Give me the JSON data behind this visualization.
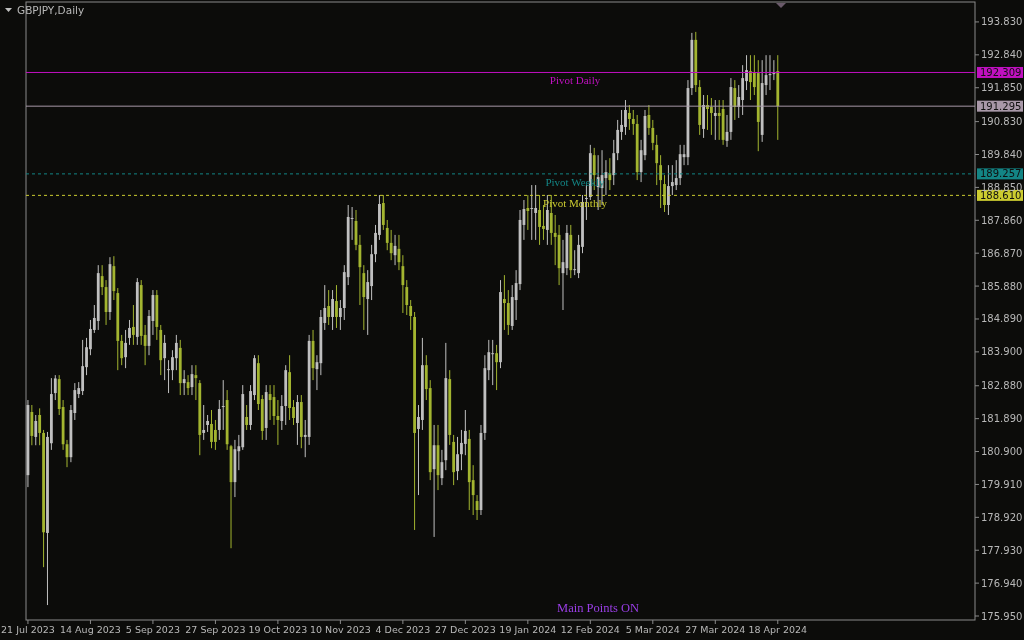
{
  "chart_data": {
    "type": "candlestick",
    "title": "GBPJPY,Daily",
    "categories": [
      "21 Jul 2023",
      null,
      null,
      null,
      null,
      null,
      null,
      null,
      null,
      null,
      null,
      null,
      null,
      null,
      null,
      null,
      "14 Aug 2023",
      null,
      null,
      null,
      null,
      null,
      null,
      null,
      null,
      null,
      null,
      null,
      null,
      null,
      null,
      null,
      "5 Sep 2023",
      null,
      null,
      null,
      null,
      null,
      null,
      null,
      null,
      null,
      null,
      null,
      null,
      null,
      null,
      null,
      "27 Sep 2023",
      null,
      null,
      null,
      null,
      null,
      null,
      null,
      null,
      null,
      null,
      null,
      null,
      null,
      null,
      null,
      "19 Oct 2023",
      null,
      null,
      null,
      null,
      null,
      null,
      null,
      null,
      null,
      null,
      null,
      null,
      null,
      null,
      null,
      "10 Nov 2023",
      null,
      null,
      null,
      null,
      null,
      null,
      null,
      null,
      null,
      null,
      null,
      null,
      null,
      null,
      null,
      "4 Dec 2023",
      null,
      null,
      null,
      null,
      null,
      null,
      null,
      null,
      null,
      null,
      null,
      null,
      null,
      null,
      null,
      "27 Dec 2023",
      null,
      null,
      null,
      null,
      null,
      null,
      null,
      null,
      null,
      null,
      null,
      null,
      null,
      null,
      null,
      "19 Jan 2024",
      null,
      null,
      null,
      null,
      null,
      null,
      null,
      null,
      null,
      null,
      null,
      null,
      null,
      null,
      null,
      "12 Feb 2024",
      null,
      null,
      null,
      null,
      null,
      null,
      null,
      null,
      null,
      null,
      null,
      null,
      null,
      null,
      null,
      "5 Mar 2024",
      null,
      null,
      null,
      null,
      null,
      null,
      null,
      null,
      null,
      null,
      null,
      null,
      null,
      null,
      null,
      "27 Mar 2024",
      null,
      null,
      null,
      null,
      null,
      null,
      null,
      null,
      null,
      null,
      null,
      null,
      null,
      null,
      null,
      "18 Apr 2024",
      null,
      null,
      null,
      null,
      null,
      null,
      null,
      null,
      null,
      null,
      null,
      null,
      null,
      null,
      null,
      null,
      null,
      null,
      null,
      null,
      null,
      null,
      null,
      null,
      null,
      null,
      null,
      null,
      null,
      null,
      null,
      null,
      null,
      null,
      null,
      null,
      null,
      null,
      null,
      null,
      null,
      null,
      null,
      null,
      null,
      null,
      null,
      null,
      null,
      null
    ],
    "ohlc": [
      [
        180.19,
        182.45,
        179.83,
        182.3
      ],
      [
        182.09,
        182.3,
        181.09,
        181.37
      ],
      [
        181.34,
        182.0,
        181.09,
        181.82
      ],
      [
        182.0,
        182.2,
        181.09,
        181.46
      ],
      [
        181.46,
        181.55,
        177.42,
        178.47
      ],
      [
        178.45,
        181.49,
        176.28,
        181.34
      ],
      [
        181.15,
        183.11,
        180.95,
        182.63
      ],
      [
        182.66,
        183.2,
        182.45,
        183.1
      ],
      [
        183.08,
        183.2,
        182.0,
        182.18
      ],
      [
        182.24,
        182.45,
        180.95,
        181.12
      ],
      [
        181.12,
        181.25,
        180.43,
        180.73
      ],
      [
        180.73,
        182.3,
        180.58,
        182.15
      ],
      [
        182.06,
        182.96,
        181.85,
        182.75
      ],
      [
        182.63,
        182.99,
        182.51,
        182.81
      ],
      [
        182.72,
        184.26,
        182.6,
        183.47
      ],
      [
        183.44,
        184.32,
        183.2,
        184.04
      ],
      [
        183.98,
        184.86,
        183.8,
        184.59
      ],
      [
        184.56,
        185.31,
        184.47,
        184.92
      ],
      [
        184.83,
        186.51,
        184.56,
        186.27
      ],
      [
        186.18,
        186.51,
        185.61,
        185.85
      ],
      [
        185.85,
        186.06,
        184.71,
        185.1
      ],
      [
        185.1,
        186.75,
        184.86,
        186.54
      ],
      [
        186.48,
        186.78,
        185.46,
        185.73
      ],
      [
        185.67,
        185.82,
        183.35,
        184.23
      ],
      [
        184.23,
        184.41,
        183.5,
        183.71
      ],
      [
        183.74,
        184.56,
        183.41,
        184.17
      ],
      [
        184.32,
        184.86,
        184.11,
        184.62
      ],
      [
        184.65,
        185.31,
        184.11,
        184.41
      ],
      [
        184.35,
        186.12,
        184.11,
        186.0
      ],
      [
        185.91,
        186.06,
        184.11,
        184.38
      ],
      [
        184.41,
        184.71,
        183.5,
        184.08
      ],
      [
        184.08,
        185.16,
        183.8,
        184.98
      ],
      [
        184.83,
        185.76,
        184.41,
        185.61
      ],
      [
        185.61,
        185.76,
        184.26,
        184.65
      ],
      [
        184.56,
        184.71,
        183.2,
        183.65
      ],
      [
        183.71,
        184.41,
        183.05,
        184.17
      ],
      [
        183.38,
        183.65,
        182.66,
        183.38
      ],
      [
        183.35,
        183.95,
        183.05,
        183.74
      ],
      [
        183.71,
        184.41,
        183.35,
        184.17
      ],
      [
        184.02,
        184.26,
        182.6,
        182.96
      ],
      [
        182.96,
        183.35,
        182.6,
        183.08
      ],
      [
        182.99,
        183.2,
        182.6,
        182.81
      ],
      [
        182.84,
        183.5,
        182.6,
        183.23
      ],
      [
        183.2,
        183.5,
        182.45,
        183.11
      ],
      [
        182.96,
        183.05,
        180.79,
        181.4
      ],
      [
        181.46,
        182.3,
        181.25,
        181.55
      ],
      [
        181.7,
        182.0,
        181.49,
        181.82
      ],
      [
        181.73,
        182.15,
        181.0,
        181.19
      ],
      [
        181.55,
        181.85,
        180.95,
        181.19
      ],
      [
        181.55,
        182.45,
        181.25,
        182.18
      ],
      [
        182.24,
        183.05,
        181.55,
        182.27
      ],
      [
        182.45,
        182.75,
        180.95,
        181.12
      ],
      [
        181.06,
        181.1,
        177.99,
        179.98
      ],
      [
        179.98,
        181.25,
        179.53,
        180.97
      ],
      [
        180.91,
        181.4,
        180.34,
        181.06
      ],
      [
        181.03,
        182.9,
        180.95,
        182.63
      ],
      [
        181.94,
        182.3,
        181.55,
        181.7
      ],
      [
        181.7,
        182.9,
        181.55,
        182.72
      ],
      [
        182.6,
        183.8,
        182.45,
        183.71
      ],
      [
        183.56,
        183.8,
        182.15,
        182.33
      ],
      [
        182.48,
        182.6,
        181.25,
        181.52
      ],
      [
        181.61,
        182.9,
        181.25,
        182.69
      ],
      [
        182.63,
        182.9,
        181.85,
        182.45
      ],
      [
        182.54,
        182.9,
        181.7,
        181.97
      ],
      [
        181.97,
        182.45,
        181.1,
        181.85
      ],
      [
        181.82,
        182.6,
        181.55,
        182.27
      ],
      [
        182.27,
        183.5,
        181.7,
        183.35
      ],
      [
        183.29,
        183.8,
        181.85,
        182.21
      ],
      [
        182.24,
        182.45,
        181.7,
        181.91
      ],
      [
        181.76,
        182.6,
        181.1,
        182.39
      ],
      [
        182.39,
        182.6,
        181.0,
        181.34
      ],
      [
        181.34,
        181.85,
        180.73,
        181.4
      ],
      [
        181.34,
        184.41,
        181.1,
        184.23
      ],
      [
        184.23,
        184.56,
        183.05,
        183.41
      ],
      [
        183.38,
        183.8,
        182.75,
        183.59
      ],
      [
        183.56,
        185.16,
        183.2,
        184.95
      ],
      [
        184.77,
        185.91,
        184.56,
        185.22
      ],
      [
        185.28,
        185.76,
        184.71,
        184.95
      ],
      [
        184.95,
        185.76,
        184.56,
        185.49
      ],
      [
        185.43,
        185.91,
        184.62,
        184.95
      ],
      [
        184.95,
        185.46,
        184.56,
        185.22
      ],
      [
        185.22,
        186.51,
        184.86,
        186.3
      ],
      [
        186.15,
        188.32,
        185.91,
        187.96
      ],
      [
        187.93,
        188.26,
        187.27,
        187.93
      ],
      [
        187.84,
        188.17,
        186.96,
        187.12
      ],
      [
        187.12,
        187.42,
        185.31,
        186.45
      ],
      [
        186.27,
        186.51,
        184.56,
        185.55
      ],
      [
        185.49,
        186.36,
        184.41,
        186.0
      ],
      [
        185.88,
        187.12,
        185.46,
        186.84
      ],
      [
        186.84,
        187.72,
        186.6,
        187.48
      ],
      [
        187.42,
        188.62,
        187.27,
        188.35
      ],
      [
        188.38,
        188.62,
        187.57,
        187.72
      ],
      [
        187.63,
        187.87,
        186.96,
        187.18
      ],
      [
        187.18,
        187.57,
        186.66,
        186.87
      ],
      [
        186.81,
        187.42,
        186.51,
        187.09
      ],
      [
        187.0,
        187.42,
        186.36,
        186.6
      ],
      [
        186.48,
        186.81,
        185.07,
        185.91
      ],
      [
        185.85,
        186.06,
        185.01,
        185.31
      ],
      [
        185.28,
        185.46,
        184.56,
        184.98
      ],
      [
        184.95,
        185.1,
        178.54,
        181.46
      ],
      [
        181.58,
        182.3,
        179.59,
        181.94
      ],
      [
        181.85,
        184.32,
        181.55,
        183.5
      ],
      [
        183.5,
        183.8,
        182.45,
        182.78
      ],
      [
        182.81,
        183.05,
        180.04,
        180.28
      ],
      [
        180.37,
        181.7,
        178.33,
        181.09
      ],
      [
        181.09,
        181.7,
        179.74,
        180.19
      ],
      [
        180.1,
        180.95,
        179.89,
        180.58
      ],
      [
        180.64,
        184.17,
        180.34,
        183.11
      ],
      [
        183.08,
        183.35,
        181.1,
        181.4
      ],
      [
        181.19,
        181.4,
        179.89,
        180.28
      ],
      [
        180.31,
        181.34,
        180.04,
        180.82
      ],
      [
        180.82,
        181.55,
        180.34,
        181.16
      ],
      [
        181.13,
        182.15,
        180.79,
        181.52
      ],
      [
        181.28,
        181.55,
        179.14,
        179.98
      ],
      [
        180.04,
        180.49,
        178.99,
        179.59
      ],
      [
        179.41,
        179.59,
        178.84,
        179.14
      ],
      [
        179.14,
        181.7,
        178.99,
        181.46
      ],
      [
        181.46,
        183.8,
        181.25,
        183.41
      ],
      [
        183.35,
        184.26,
        183.05,
        183.89
      ],
      [
        183.86,
        184.26,
        182.9,
        183.86
      ],
      [
        183.86,
        184.11,
        182.75,
        183.59
      ],
      [
        183.59,
        186.06,
        183.41,
        185.7
      ],
      [
        185.49,
        186.21,
        184.56,
        185.37
      ],
      [
        185.37,
        185.76,
        184.41,
        184.71
      ],
      [
        184.68,
        185.91,
        184.56,
        185.55
      ],
      [
        185.46,
        186.36,
        184.86,
        185.97
      ],
      [
        185.94,
        188.17,
        185.76,
        187.87
      ],
      [
        187.72,
        188.47,
        187.27,
        188.2
      ],
      [
        188.23,
        188.62,
        187.57,
        188.14
      ],
      [
        188.23,
        188.92,
        187.27,
        188.23
      ],
      [
        188.08,
        188.92,
        187.27,
        188.23
      ],
      [
        188.17,
        188.62,
        187.12,
        187.66
      ],
      [
        187.69,
        188.32,
        187.27,
        187.6
      ],
      [
        187.57,
        188.62,
        187.12,
        188.17
      ],
      [
        188.08,
        188.62,
        187.12,
        187.48
      ],
      [
        187.48,
        188.02,
        186.51,
        187.36
      ],
      [
        187.42,
        187.72,
        185.91,
        186.42
      ],
      [
        186.27,
        187.27,
        185.16,
        186.6
      ],
      [
        186.42,
        187.72,
        186.21,
        187.48
      ],
      [
        187.42,
        187.72,
        186.12,
        186.36
      ],
      [
        186.39,
        186.96,
        186.21,
        186.39
      ],
      [
        186.27,
        187.42,
        186.12,
        187.12
      ],
      [
        187.06,
        188.62,
        186.87,
        188.41
      ],
      [
        188.53,
        188.92,
        187.87,
        188.53
      ],
      [
        188.56,
        190.13,
        188.47,
        189.88
      ],
      [
        189.82,
        190.04,
        188.77,
        189.22
      ],
      [
        188.86,
        189.82,
        188.17,
        189.16
      ],
      [
        188.83,
        189.97,
        188.32,
        189.22
      ],
      [
        189.13,
        189.67,
        188.62,
        189.31
      ],
      [
        189.28,
        189.73,
        188.77,
        189.07
      ],
      [
        189.22,
        190.28,
        188.92,
        189.88
      ],
      [
        189.88,
        190.88,
        189.67,
        190.58
      ],
      [
        190.52,
        191.18,
        190.28,
        190.73
      ],
      [
        190.67,
        191.48,
        190.43,
        191.18
      ],
      [
        191.09,
        191.33,
        190.58,
        190.91
      ],
      [
        190.91,
        191.18,
        190.43,
        190.76
      ],
      [
        190.76,
        191.03,
        189.07,
        189.31
      ],
      [
        189.31,
        190.28,
        189.01,
        189.97
      ],
      [
        189.82,
        191.18,
        189.67,
        191.0
      ],
      [
        191.03,
        191.33,
        190.43,
        190.64
      ],
      [
        190.64,
        190.88,
        189.97,
        190.19
      ],
      [
        190.13,
        190.43,
        188.92,
        189.58
      ],
      [
        189.52,
        189.82,
        188.23,
        189.07
      ],
      [
        188.95,
        189.22,
        188.11,
        188.32
      ],
      [
        188.32,
        189.52,
        188.02,
        188.89
      ],
      [
        188.89,
        189.52,
        188.62,
        189.01
      ],
      [
        188.92,
        189.67,
        188.77,
        189.13
      ],
      [
        189.13,
        190.13,
        188.92,
        189.85
      ],
      [
        189.76,
        190.13,
        189.52,
        189.85
      ],
      [
        189.76,
        192.08,
        189.52,
        191.84
      ],
      [
        191.84,
        193.5,
        191.63,
        193.29
      ],
      [
        193.29,
        193.53,
        191.72,
        191.93
      ],
      [
        191.87,
        192.08,
        190.43,
        190.73
      ],
      [
        190.61,
        191.63,
        190.34,
        191.33
      ],
      [
        191.33,
        191.63,
        190.58,
        191.21
      ],
      [
        191.27,
        191.54,
        190.43,
        191.09
      ],
      [
        191.0,
        191.48,
        190.28,
        191.09
      ],
      [
        191.09,
        191.48,
        190.28,
        191.0
      ],
      [
        191.21,
        191.48,
        190.13,
        190.28
      ],
      [
        190.25,
        191.03,
        190.07,
        190.52
      ],
      [
        190.52,
        192.14,
        190.28,
        191.87
      ],
      [
        191.84,
        192.08,
        190.88,
        191.27
      ],
      [
        191.27,
        191.93,
        190.94,
        191.57
      ],
      [
        191.48,
        192.53,
        191.03,
        192.14
      ],
      [
        192.05,
        192.83,
        191.78,
        192.38
      ],
      [
        192.35,
        192.83,
        191.48,
        192.02
      ],
      [
        192.32,
        192.83,
        191.63,
        191.87
      ],
      [
        192.29,
        192.68,
        189.94,
        190.82
      ],
      [
        190.43,
        192.68,
        190.22,
        191.99
      ],
      [
        191.93,
        192.83,
        191.63,
        192.23
      ],
      [
        192.26,
        192.83,
        191.78,
        192.26
      ],
      [
        192.29,
        192.68,
        192.08,
        192.29
      ],
      [
        192.35,
        192.83,
        190.28,
        191.3
      ],
      null,
      null,
      null,
      null,
      null,
      null,
      null,
      null,
      null,
      null,
      null,
      null,
      null,
      null,
      null,
      null,
      null,
      null,
      null,
      null,
      null,
      null,
      null,
      null,
      null,
      null,
      null,
      null,
      null,
      null,
      null,
      null,
      null,
      null,
      null,
      null,
      null,
      null,
      null,
      null,
      null,
      null,
      null,
      null,
      null,
      null,
      null,
      null,
      null,
      null
    ],
    "colors": [
      "#c0c0c0",
      "#a3b530",
      "#c0c0c0",
      "#a3b530",
      "#a3b530",
      "#c0c0c0",
      "#c0c0c0",
      "#c0c0c0",
      "#a3b530",
      "#a3b530",
      "#a3b530",
      "#c0c0c0",
      "#c0c0c0",
      "#c0c0c0",
      "#c0c0c0",
      "#c0c0c0",
      "#c0c0c0",
      "#c0c0c0",
      "#c0c0c0",
      "#a3b530",
      "#a3b530",
      "#c0c0c0",
      "#a3b530",
      "#a3b530",
      "#a3b530",
      "#c0c0c0",
      "#c0c0c0",
      "#a3b530",
      "#c0c0c0",
      "#a3b530",
      "#a3b530",
      "#c0c0c0",
      "#c0c0c0",
      "#a3b530",
      "#a3b530",
      "#c0c0c0",
      "#c0c0c0",
      "#c0c0c0",
      "#c0c0c0",
      "#a3b530",
      "#c0c0c0",
      "#a3b530",
      "#c0c0c0",
      "#a3b530",
      "#a3b530",
      "#c0c0c0",
      "#c0c0c0",
      "#a3b530",
      "#a3b530",
      "#c0c0c0",
      "#c0c0c0",
      "#a3b530",
      "#a3b530",
      "#c0c0c0",
      "#c0c0c0",
      "#c0c0c0",
      "#a3b530",
      "#c0c0c0",
      "#c0c0c0",
      "#a3b530",
      "#a3b530",
      "#c0c0c0",
      "#a3b530",
      "#a3b530",
      "#a3b530",
      "#c0c0c0",
      "#c0c0c0",
      "#a3b530",
      "#a3b530",
      "#c0c0c0",
      "#a3b530",
      "#c0c0c0",
      "#c0c0c0",
      "#a3b530",
      "#c0c0c0",
      "#c0c0c0",
      "#c0c0c0",
      "#a3b530",
      "#c0c0c0",
      "#a3b530",
      "#c0c0c0",
      "#c0c0c0",
      "#c0c0c0",
      "#c0c0c0",
      "#a3b530",
      "#a3b530",
      "#a3b530",
      "#c0c0c0",
      "#c0c0c0",
      "#c0c0c0",
      "#c0c0c0",
      "#a3b530",
      "#a3b530",
      "#a3b530",
      "#c0c0c0",
      "#a3b530",
      "#a3b530",
      "#a3b530",
      "#a3b530",
      "#a3b530",
      "#c0c0c0",
      "#c0c0c0",
      "#a3b530",
      "#a3b530",
      "#c0c0c0",
      "#a3b530",
      "#c0c0c0",
      "#c0c0c0",
      "#a3b530",
      "#a3b530",
      "#c0c0c0",
      "#c0c0c0",
      "#c0c0c0",
      "#a3b530",
      "#a3b530",
      "#a3b530",
      "#c0c0c0",
      "#c0c0c0",
      "#c0c0c0",
      "#c0c0c0",
      "#a3b530",
      "#c0c0c0",
      "#a3b530",
      "#a3b530",
      "#c0c0c0",
      "#c0c0c0",
      "#c0c0c0",
      "#c0c0c0",
      "#a3b530",
      "#c0c0c0",
      "#c0c0c0",
      "#a3b530",
      "#a3b530",
      "#c0c0c0",
      "#a3b530",
      "#a3b530",
      "#a3b530",
      "#c0c0c0",
      "#c0c0c0",
      "#a3b530",
      "#c0c0c0",
      "#c0c0c0",
      "#c0c0c0",
      "#c0c0c0",
      "#c0c0c0",
      "#a3b530",
      "#c0c0c0",
      "#c0c0c0",
      "#c0c0c0",
      "#a3b530",
      "#c0c0c0",
      "#c0c0c0",
      "#c0c0c0",
      "#c0c0c0",
      "#a3b530",
      "#a3b530",
      "#a3b530",
      "#c0c0c0",
      "#c0c0c0",
      "#a3b530",
      "#a3b530",
      "#a3b530",
      "#a3b530",
      "#a3b530",
      "#c0c0c0",
      "#c0c0c0",
      "#c0c0c0",
      "#c0c0c0",
      "#c0c0c0",
      "#c0c0c0",
      "#c0c0c0",
      "#a3b530",
      "#a3b530",
      "#c0c0c0",
      "#a3b530",
      "#a3b530",
      "#c0c0c0",
      "#a3b530",
      "#a3b530",
      "#c0c0c0",
      "#c0c0c0",
      "#a3b530",
      "#c0c0c0",
      "#c0c0c0",
      "#c0c0c0",
      "#a3b530",
      "#a3b530",
      "#a3b530",
      "#c0c0c0",
      "#c0c0c0",
      "#c0c0c0",
      "#c0c0c0",
      "#a3b530",
      null,
      null,
      null,
      null,
      null,
      null,
      null,
      null,
      null,
      null,
      null,
      null,
      null,
      null,
      null,
      null,
      null,
      null,
      null,
      null,
      null,
      null,
      null,
      null,
      null,
      null,
      null,
      null,
      null,
      null,
      null,
      null,
      null,
      null,
      null,
      null,
      null,
      null,
      null,
      null,
      null,
      null,
      null,
      null,
      null,
      null,
      null,
      null,
      null,
      null
    ],
    "ylim": [
      175.83,
      194.43
    ],
    "yticks": [
      {
        "value": 175.95,
        "label": "175.950"
      },
      {
        "value": 176.94,
        "label": "176.940"
      },
      {
        "value": 177.93,
        "label": "177.930"
      },
      {
        "value": 178.92,
        "label": "178.920"
      },
      {
        "value": 179.91,
        "label": "179.910"
      },
      {
        "value": 180.9,
        "label": "180.900"
      },
      {
        "value": 181.89,
        "label": "181.890"
      },
      {
        "value": 182.88,
        "label": "182.880"
      },
      {
        "value": 183.9,
        "label": "183.900"
      },
      {
        "value": 184.89,
        "label": "184.890"
      },
      {
        "value": 185.88,
        "label": "185.880"
      },
      {
        "value": 186.87,
        "label": "186.870"
      },
      {
        "value": 187.86,
        "label": "187.860"
      },
      {
        "value": 188.85,
        "label": "188.850"
      },
      {
        "value": 189.84,
        "label": "189.840"
      },
      {
        "value": 190.83,
        "label": "190.830"
      },
      {
        "value": 191.85,
        "label": "191.850"
      },
      {
        "value": 192.84,
        "label": "192.840"
      },
      {
        "value": 193.83,
        "label": "193.830"
      }
    ],
    "ref_lines": [
      {
        "axis": "y",
        "value": 192.309,
        "label": "192.309",
        "color": "#c010c0",
        "line_style": "solid"
      },
      {
        "axis": "y",
        "value": 191.295,
        "label": "191.295",
        "color": "#a898a8",
        "line_style": "solid"
      },
      {
        "axis": "y",
        "value": 189.257,
        "label": "189.257",
        "color": "#138585",
        "line_style": "dashed"
      },
      {
        "axis": "y",
        "value": 188.61,
        "label": "188.610",
        "color": "#cccc30",
        "line_style": "dashed"
      }
    ],
    "annotations": [
      {
        "text": "Pivot Daily",
        "y": 192.309
      },
      {
        "text": "Pivot Weekly",
        "y": 189.257
      },
      {
        "text": "Pivot Monthly",
        "y": 188.61
      },
      "Main Points ON"
    ]
  }
}
